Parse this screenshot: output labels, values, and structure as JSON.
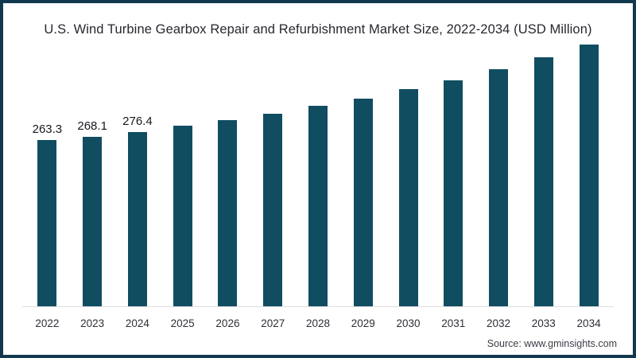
{
  "title": "U.S. Wind Turbine Gearbox Repair and Refurbishment Market Size, 2022-2034 (USD Million)",
  "source": "Source: www.gminsights.com",
  "chart_data": {
    "type": "bar",
    "title": "U.S. Wind Turbine Gearbox Repair and Refurbishment Market Size, 2022-2034 (USD Million)",
    "categories": [
      "2022",
      "2023",
      "2024",
      "2025",
      "2026",
      "2027",
      "2028",
      "2029",
      "2030",
      "2031",
      "2032",
      "2033",
      "2034"
    ],
    "values": [
      263.3,
      268.1,
      276.4,
      285.5,
      295.0,
      304.9,
      317.0,
      329.3,
      343.9,
      357.8,
      375.4,
      394.3,
      414.5
    ],
    "data_labels": [
      "263.3",
      "268.1",
      "276.4",
      "",
      "",
      "",
      "",
      "",
      "",
      "",
      "",
      "",
      ""
    ],
    "xlabel": "",
    "ylabel": "",
    "ylim": [
      0,
      428
    ],
    "grid": false,
    "legend": false,
    "bar_color": "#104d61"
  },
  "colors": {
    "bar": "#104d61",
    "frame_border": "#123850",
    "axis_line": "#dedede",
    "title_text": "#27272f",
    "label_text": "#17171f",
    "tick_text": "#2e2e36",
    "source_text": "#3c3c46",
    "background": "#ffffff"
  }
}
